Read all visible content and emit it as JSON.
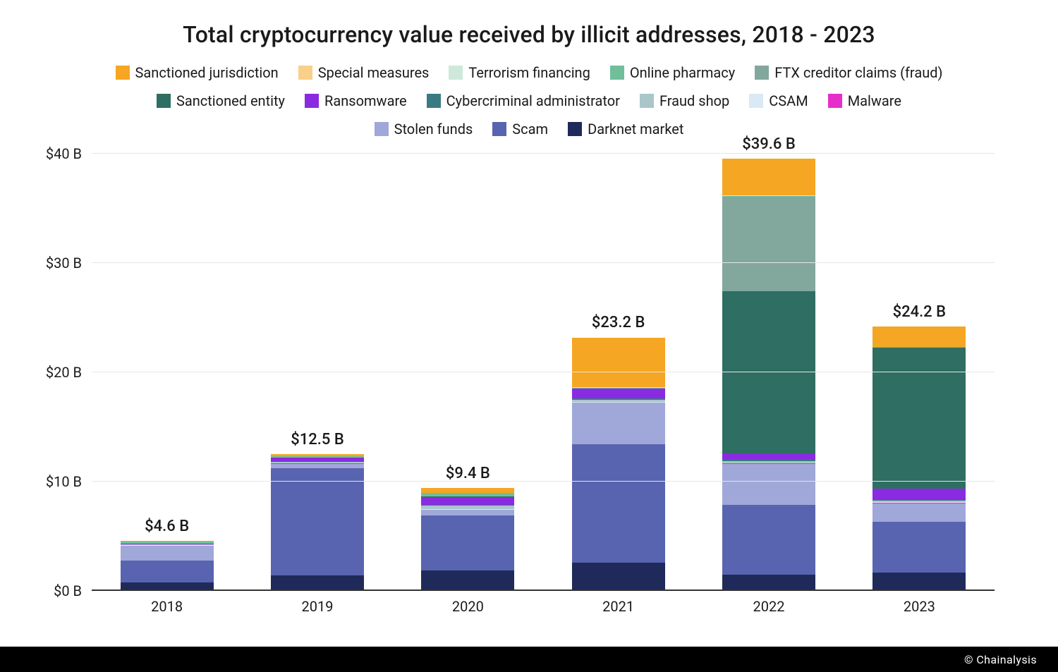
{
  "chart": {
    "type": "stacked-bar",
    "title": "Total cryptocurrency value received by illicit addresses, 2018 - 2023",
    "title_fontsize": 32,
    "background_color": "#ffffff",
    "grid_color": "#e6e6e6",
    "axis_color": "#333333",
    "label_fontsize": 20,
    "total_label_fontsize": 22,
    "y_axis": {
      "min": 0,
      "max": 40,
      "tick_step": 10,
      "tick_labels": [
        "$0 B",
        "$10 B",
        "$20 B",
        "$30 B",
        "$40 B"
      ],
      "tick_values": [
        0,
        10,
        20,
        30,
        40
      ]
    },
    "categories": [
      "2018",
      "2019",
      "2020",
      "2021",
      "2022",
      "2023"
    ],
    "bar_width_ratio": 0.62,
    "series": [
      {
        "key": "sanctioned_jurisdiction",
        "label": "Sanctioned jurisdiction",
        "color": "#f5a623"
      },
      {
        "key": "special_measures",
        "label": "Special measures",
        "color": "#f8d08a"
      },
      {
        "key": "terrorism_financing",
        "label": "Terrorism financing",
        "color": "#cfe8dc"
      },
      {
        "key": "online_pharmacy",
        "label": "Online pharmacy",
        "color": "#6fbf9b"
      },
      {
        "key": "ftx_creditor_claims",
        "label": "FTX creditor claims (fraud)",
        "color": "#82a79d"
      },
      {
        "key": "sanctioned_entity",
        "label": "Sanctioned entity",
        "color": "#2f6e62"
      },
      {
        "key": "ransomware",
        "label": "Ransomware",
        "color": "#8a2be2"
      },
      {
        "key": "cybercriminal_admin",
        "label": "Cybercriminal administrator",
        "color": "#3a7a82"
      },
      {
        "key": "fraud_shop",
        "label": "Fraud shop",
        "color": "#a9c6c9"
      },
      {
        "key": "csam",
        "label": "CSAM",
        "color": "#d9e9f5"
      },
      {
        "key": "malware",
        "label": "Malware",
        "color": "#e62ecb"
      },
      {
        "key": "stolen_funds",
        "label": "Stolen funds",
        "color": "#9fa8d9"
      },
      {
        "key": "scam",
        "label": "Scam",
        "color": "#5864af"
      },
      {
        "key": "darknet_market",
        "label": "Darknet market",
        "color": "#1f2a5a"
      }
    ],
    "stack_order": [
      "darknet_market",
      "scam",
      "stolen_funds",
      "malware",
      "csam",
      "fraud_shop",
      "cybercriminal_admin",
      "ransomware",
      "sanctioned_entity",
      "ftx_creditor_claims",
      "online_pharmacy",
      "terrorism_financing",
      "special_measures",
      "sanctioned_jurisdiction"
    ],
    "totals_labels": [
      "$4.6 B",
      "$12.5 B",
      "$9.4 B",
      "$23.2 B",
      "$39.6 B",
      "$24.2 B"
    ],
    "data": {
      "darknet_market": [
        0.8,
        1.4,
        1.9,
        2.6,
        1.5,
        1.7
      ],
      "scam": [
        2.0,
        9.8,
        5.0,
        10.8,
        6.4,
        4.6
      ],
      "stolen_funds": [
        1.3,
        0.4,
        0.5,
        3.8,
        3.7,
        1.7
      ],
      "malware": [
        0.05,
        0.05,
        0.05,
        0.05,
        0.05,
        0.05
      ],
      "csam": [
        0.03,
        0.03,
        0.05,
        0.05,
        0.05,
        0.05
      ],
      "fraud_shop": [
        0.05,
        0.1,
        0.3,
        0.2,
        0.2,
        0.15
      ],
      "cybercriminal_admin": [
        0.04,
        0.05,
        0.1,
        0.1,
        0.1,
        0.1
      ],
      "ransomware": [
        0.05,
        0.35,
        0.7,
        0.9,
        0.6,
        1.0
      ],
      "sanctioned_entity": [
        0,
        0,
        0.05,
        0.05,
        14.8,
        12.9
      ],
      "ftx_creditor_claims": [
        0,
        0,
        0,
        0,
        8.7,
        0
      ],
      "online_pharmacy": [
        0.2,
        0.15,
        0.3,
        0.05,
        0.05,
        0.05
      ],
      "terrorism_financing": [
        0.03,
        0.02,
        0.02,
        0.02,
        0.02,
        0.02
      ],
      "special_measures": [
        0.0,
        0.0,
        0.0,
        0.0,
        0.02,
        0.02
      ],
      "sanctioned_jurisdiction": [
        0.05,
        0.15,
        0.43,
        4.58,
        3.37,
        1.86
      ]
    }
  },
  "footer": {
    "text": "© Chainalysis"
  }
}
